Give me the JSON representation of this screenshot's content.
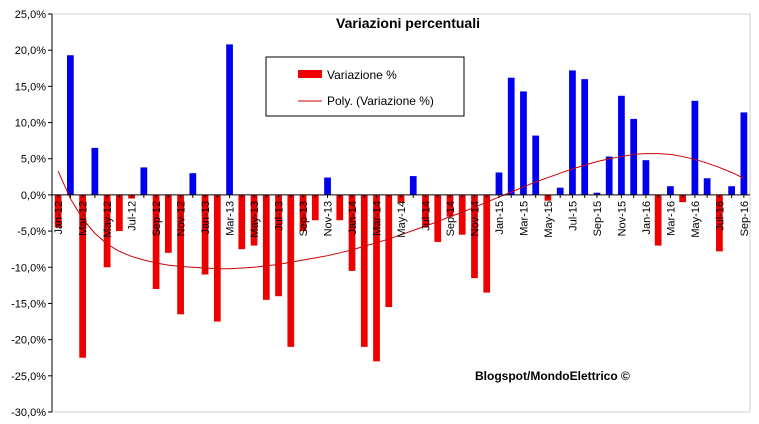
{
  "chart_data": {
    "type": "bar",
    "title": "Variazioni percentuali",
    "credit": "Blogspot/MondoElettrico ©",
    "ylim": [
      -30,
      25
    ],
    "y_ticks": [
      25,
      20,
      15,
      10,
      5,
      0,
      -5,
      -10,
      -15,
      -20,
      -25,
      -30
    ],
    "y_tick_labels": [
      "25,0%",
      "20,0%",
      "15,0%",
      "10,0%",
      "5,0%",
      "0,0%",
      "-5,0%",
      "-10,0%",
      "-15,0%",
      "-20,0%",
      "-25,0%",
      "-30,0%"
    ],
    "grid": false,
    "legend_placement": "top-center",
    "colors": {
      "positive": "#0000ee",
      "negative": "#ee0000",
      "trend": "#cc0000",
      "axis": "#000000"
    },
    "categories": [
      "Jan-12",
      "Feb-12",
      "Mar-12",
      "Apr-12",
      "May-12",
      "Jun-12",
      "Jul-12",
      "Aug-12",
      "Sep-12",
      "Oct-12",
      "Nov-12",
      "Dec-12",
      "Jan-13",
      "Feb-13",
      "Mar-13",
      "Apr-13",
      "May-13",
      "Jun-13",
      "Jul-13",
      "Aug-13",
      "Sep-13",
      "Oct-13",
      "Nov-13",
      "Dec-13",
      "Jan-14",
      "Feb-14",
      "Mar-14",
      "Apr-14",
      "May-14",
      "Jun-14",
      "Jul-14",
      "Aug-14",
      "Sep-14",
      "Oct-14",
      "Nov-14",
      "Dec-14",
      "Jan-15",
      "Feb-15",
      "Mar-15",
      "Apr-15",
      "May-15",
      "Jun-15",
      "Jul-15",
      "Aug-15",
      "Sep-15",
      "Oct-15",
      "Nov-15",
      "Dec-15",
      "Jan-16",
      "Feb-16",
      "Mar-16",
      "Apr-16",
      "May-16",
      "Jun-16",
      "Jul-16",
      "Aug-16",
      "Sep-16"
    ],
    "shown_x_labels": [
      "Jan-12",
      "Mar-12",
      "May-12",
      "Jul-12",
      "Sep-12",
      "Nov-12",
      "Jan-13",
      "Mar-13",
      "May-13",
      "Jul-13",
      "Sep-13",
      "Nov-13",
      "Jan-14",
      "Mar-14",
      "May-14",
      "Jul-14",
      "Sep-14",
      "Nov-14",
      "Jan-15",
      "Mar-15",
      "May-15",
      "Jul-15",
      "Sep-15",
      "Nov-15",
      "Jan-16",
      "Mar-16",
      "May-16",
      "Jul-16",
      "Sep-16"
    ],
    "series": [
      {
        "name": "Variazione %",
        "values": [
          -4.5,
          19.3,
          -22.5,
          6.5,
          -10.0,
          -5.0,
          -0.5,
          3.8,
          -13.0,
          -8.0,
          -16.5,
          3.0,
          -11.0,
          -17.5,
          20.8,
          -7.5,
          -7.0,
          -14.5,
          -14.0,
          -21.0,
          -5.0,
          -3.5,
          2.4,
          -3.5,
          -10.5,
          -21.0,
          -23.0,
          -15.5,
          -1.0,
          2.6,
          -4.5,
          -6.5,
          -3.0,
          -5.5,
          -11.5,
          -13.5,
          3.1,
          16.2,
          14.3,
          8.2,
          -0.8,
          1.0,
          17.2,
          16.0,
          0.3,
          5.3,
          13.7,
          10.5,
          4.8,
          -7.0,
          1.2,
          -1.0,
          13.0,
          2.3,
          -7.8,
          1.2,
          11.4
        ]
      },
      {
        "name": "Poly. (Variazione %)",
        "type": "polynomial-trend",
        "values": [
          3.3,
          -0.5,
          -3.3,
          -5.3,
          -6.8,
          -7.8,
          -8.5,
          -9.0,
          -9.4,
          -9.7,
          -9.9,
          -10.0,
          -10.1,
          -10.2,
          -10.2,
          -10.1,
          -10.0,
          -9.8,
          -9.6,
          -9.3,
          -9.0,
          -8.7,
          -8.4,
          -8.0,
          -7.6,
          -7.1,
          -6.6,
          -6.1,
          -5.5,
          -4.9,
          -4.3,
          -3.7,
          -3.0,
          -2.4,
          -1.7,
          -1.0,
          -0.3,
          0.4,
          1.1,
          1.8,
          2.4,
          3.0,
          3.6,
          4.1,
          4.6,
          5.0,
          5.3,
          5.6,
          5.7,
          5.7,
          5.6,
          5.3,
          4.9,
          4.4,
          3.8,
          3.1,
          2.3
        ]
      }
    ]
  }
}
